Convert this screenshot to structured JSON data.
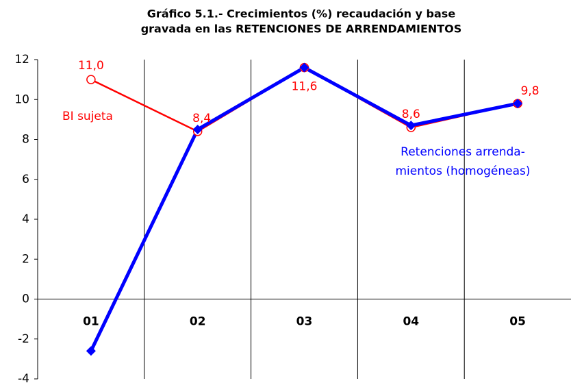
{
  "chart_data": {
    "type": "line",
    "title": [
      "Gráfico 5.1.- Crecimientos (%) recaudación y base",
      "gravada en las RETENCIONES DE ARRENDAMIENTOS"
    ],
    "categories": [
      "01",
      "02",
      "03",
      "04",
      "05"
    ],
    "series": [
      {
        "name": "BI sujeta",
        "color": "#ff0000",
        "values": [
          11.0,
          8.4,
          11.6,
          8.6,
          9.8
        ],
        "value_labels": [
          "11,0",
          "8,4",
          "11,6",
          "8,6",
          "9,8"
        ]
      },
      {
        "name": "Retenciones arrenda- mientos (homogéneas)",
        "color": "#0000ff",
        "values": [
          -2.6,
          8.5,
          11.6,
          8.7,
          9.8
        ]
      }
    ],
    "ylim": [
      -4,
      12
    ],
    "yticks": [
      -4,
      -2,
      0,
      2,
      4,
      6,
      8,
      10,
      12
    ]
  }
}
